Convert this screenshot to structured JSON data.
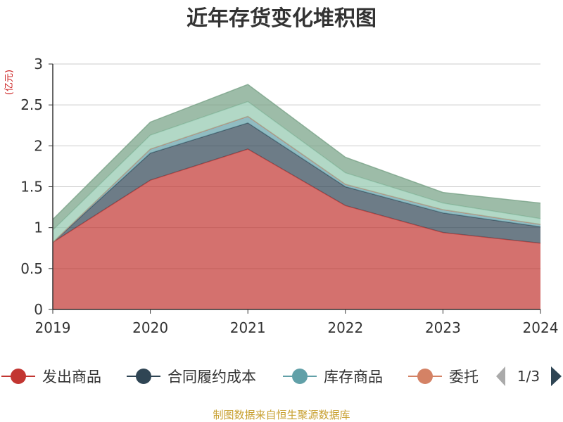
{
  "chart_data": {
    "type": "area",
    "stacked": true,
    "title": "近年存货变化堆积图",
    "unit_label": "(亿元)",
    "x": [
      "2019",
      "2020",
      "2021",
      "2022",
      "2023",
      "2024"
    ],
    "ylim": [
      0,
      3
    ],
    "yticks": [
      "0",
      "0.5",
      "1",
      "1.5",
      "2",
      "2.5",
      "3"
    ],
    "grid": true,
    "legend_position": "bottom",
    "series": [
      {
        "name": "发出商品",
        "color": "#c23531",
        "values": [
          0.82,
          1.58,
          1.96,
          1.27,
          0.94,
          0.81
        ]
      },
      {
        "name": "合同履约成本",
        "color": "#2f4554",
        "values": [
          0.0,
          0.33,
          0.32,
          0.23,
          0.24,
          0.2
        ]
      },
      {
        "name": "库存商品",
        "color": "#61a0a8",
        "values": [
          0.0,
          0.05,
          0.08,
          0.03,
          0.04,
          0.03
        ]
      },
      {
        "name": "委托",
        "color": "#d48265",
        "values": [
          0.0,
          0.0,
          0.0,
          0.0,
          0.0,
          0.0
        ]
      },
      {
        "name": "",
        "color": "#91c7ae",
        "values": [
          0.15,
          0.17,
          0.18,
          0.14,
          0.08,
          0.07
        ]
      },
      {
        "name": "",
        "color": "#749f83",
        "values": [
          0.13,
          0.16,
          0.21,
          0.19,
          0.13,
          0.19
        ]
      }
    ],
    "legend_visible_count": 4,
    "legend_page": "1/3",
    "source": "制图数据来自恒生聚源数据库"
  }
}
